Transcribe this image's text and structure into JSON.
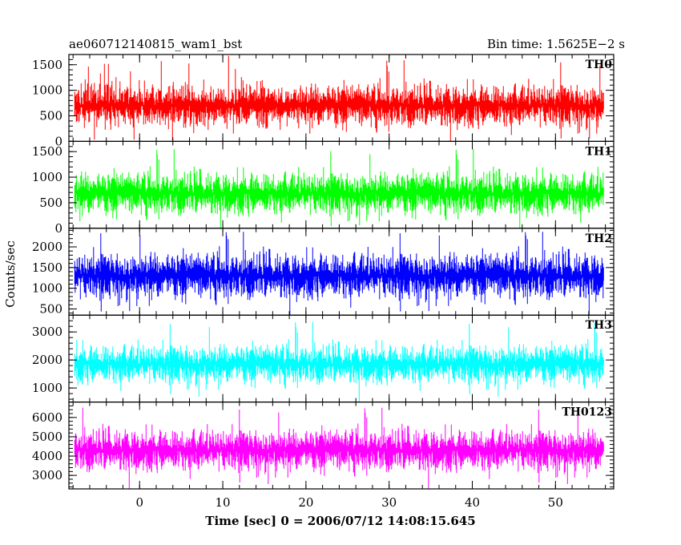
{
  "chart_data": {
    "type": "line",
    "title_left": "ae060712140815_wam1_bst",
    "title_right": "Bin time: 1.5625E−2 s",
    "xlabel": "Time [sec] 0 = 2006/07/12 14:08:15.645",
    "ylabel": "Counts/sec",
    "xlim": [
      -8.5,
      57
    ],
    "x_ticks": [
      0,
      10,
      20,
      30,
      40,
      50
    ],
    "x_tick_labels": [
      "0",
      "10",
      "20",
      "30",
      "40",
      "50"
    ],
    "x_data_range": [
      -7.8,
      55.8
    ],
    "bin_time": 0.015625,
    "grid": false,
    "panels": [
      {
        "name": "TH0",
        "color": "#ff0000",
        "ylim": [
          0,
          1700
        ],
        "y_ticks": [
          0,
          500,
          1000,
          1500
        ],
        "y_tick_labels": [
          "0",
          "500",
          "1000",
          "1500"
        ],
        "mean": 700,
        "typical_min": 120,
        "typical_max": 1320,
        "spike_max": 1700
      },
      {
        "name": "TH1",
        "color": "#00ff00",
        "ylim": [
          0,
          1700
        ],
        "y_ticks": [
          0,
          500,
          1000,
          1500
        ],
        "y_tick_labels": [
          "0",
          "500",
          "1000",
          "1500"
        ],
        "mean": 680,
        "typical_min": 110,
        "typical_max": 1300,
        "spike_max": 1650
      },
      {
        "name": "TH2",
        "color": "#0000ff",
        "ylim": [
          350,
          2450
        ],
        "y_ticks": [
          500,
          1000,
          1500,
          2000
        ],
        "y_tick_labels": [
          "500",
          "1000",
          "1500",
          "2000"
        ],
        "mean": 1300,
        "typical_min": 550,
        "typical_max": 2150,
        "spike_max": 2450
      },
      {
        "name": "TH3",
        "color": "#00ffff",
        "ylim": [
          500,
          3600
        ],
        "y_ticks": [
          1000,
          2000,
          3000
        ],
        "y_tick_labels": [
          "1000",
          "2000",
          "3000"
        ],
        "mean": 1850,
        "typical_min": 900,
        "typical_max": 2900,
        "spike_max": 3550
      },
      {
        "name": "TH0123",
        "color": "#ff00ff",
        "ylim": [
          2300,
          6800
        ],
        "y_ticks": [
          3000,
          4000,
          5000,
          6000
        ],
        "y_tick_labels": [
          "3000",
          "4000",
          "5000",
          "6000"
        ],
        "mean": 4300,
        "typical_min": 2800,
        "typical_max": 5900,
        "spike_max": 6750
      }
    ]
  }
}
